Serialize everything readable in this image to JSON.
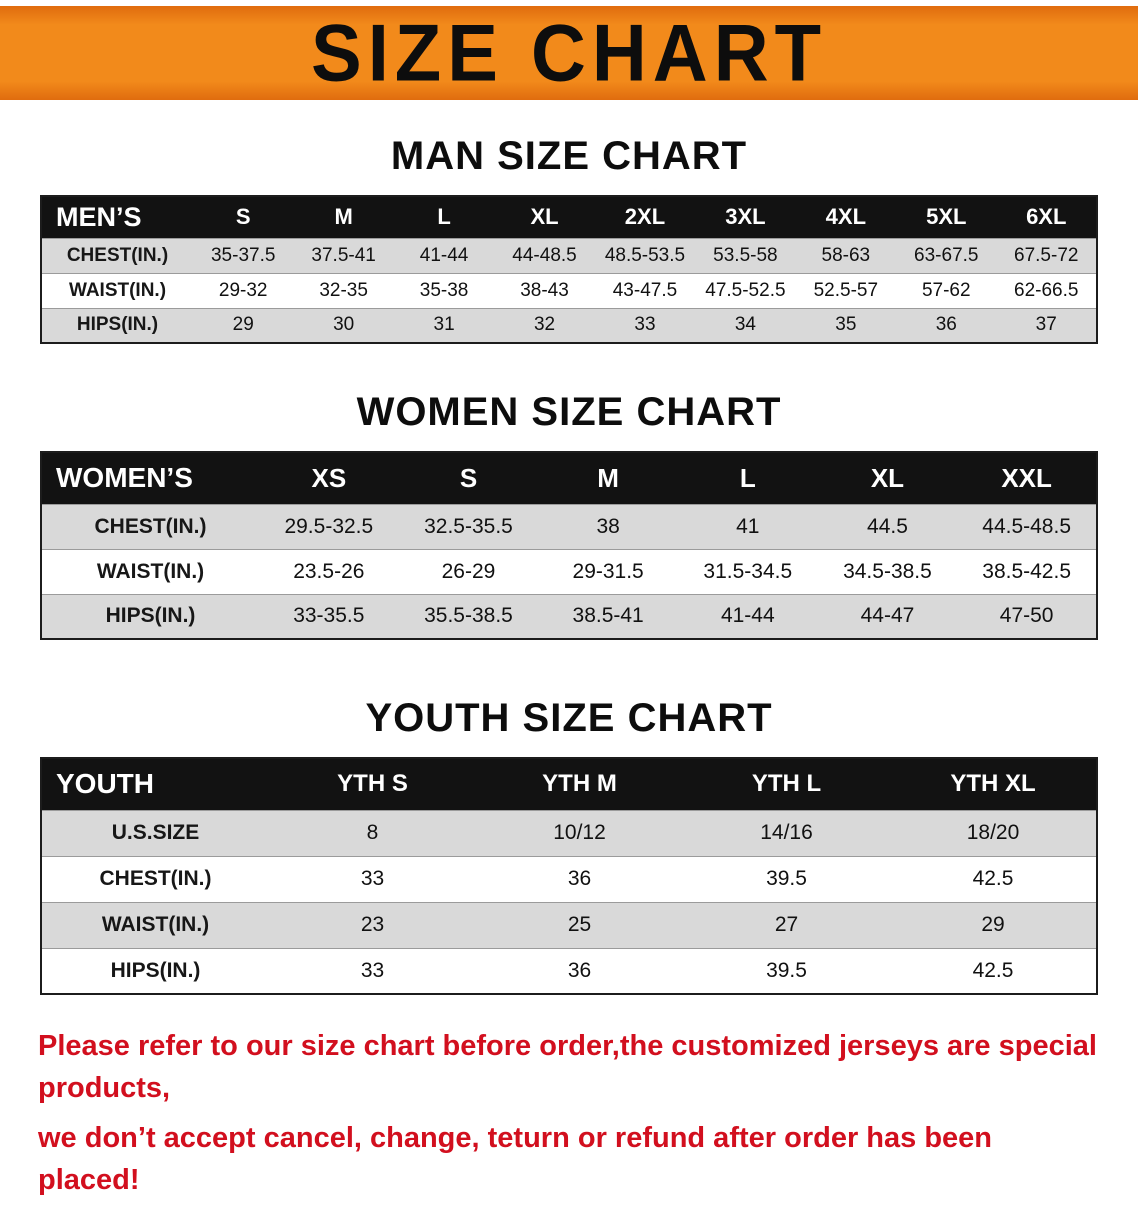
{
  "banner": {
    "title": "SIZE CHART"
  },
  "colors": {
    "banner_bg": "#f28a1b",
    "banner_bg_dark": "#e06c0e",
    "table_header_bg": "#121212",
    "table_header_text": "#ffffff",
    "row_shade": "#d9d9d9",
    "disclaimer_text": "#d20f1e"
  },
  "chart_data": [
    {
      "type": "table",
      "title": "MAN SIZE CHART",
      "columns": [
        "MEN’S",
        "S",
        "M",
        "L",
        "XL",
        "2XL",
        "3XL",
        "4XL",
        "5XL",
        "6XL"
      ],
      "rows": [
        [
          "CHEST(IN.)",
          "35-37.5",
          "37.5-41",
          "41-44",
          "44-48.5",
          "48.5-53.5",
          "53.5-58",
          "58-63",
          "63-67.5",
          "67.5-72"
        ],
        [
          "WAIST(IN.)",
          "29-32",
          "32-35",
          "35-38",
          "38-43",
          "43-47.5",
          "47.5-52.5",
          "52.5-57",
          "57-62",
          "62-66.5"
        ],
        [
          "HIPS(IN.)",
          "29",
          "30",
          "31",
          "32",
          "33",
          "34",
          "35",
          "36",
          "37"
        ]
      ]
    },
    {
      "type": "table",
      "title": "WOMEN SIZE CHART",
      "columns": [
        "WOMEN’S",
        "XS",
        "S",
        "M",
        "L",
        "XL",
        "XXL"
      ],
      "rows": [
        [
          "CHEST(IN.)",
          "29.5-32.5",
          "32.5-35.5",
          "38",
          "41",
          "44.5",
          "44.5-48.5"
        ],
        [
          "WAIST(IN.)",
          "23.5-26",
          "26-29",
          "29-31.5",
          "31.5-34.5",
          "34.5-38.5",
          "38.5-42.5"
        ],
        [
          "HIPS(IN.)",
          "33-35.5",
          "35.5-38.5",
          "38.5-41",
          "41-44",
          "44-47",
          "47-50"
        ]
      ]
    },
    {
      "type": "table",
      "title": "YOUTH SIZE CHART",
      "columns": [
        "YOUTH",
        "YTH S",
        "YTH M",
        "YTH L",
        "YTH XL"
      ],
      "rows": [
        [
          "U.S.SIZE",
          "8",
          "10/12",
          "14/16",
          "18/20"
        ],
        [
          "CHEST(IN.)",
          "33",
          "36",
          "39.5",
          "42.5"
        ],
        [
          "WAIST(IN.)",
          "23",
          "25",
          "27",
          "29"
        ],
        [
          "HIPS(IN.)",
          "33",
          "36",
          "39.5",
          "42.5"
        ]
      ]
    }
  ],
  "disclaimer": {
    "line1": "Please refer to our size chart before order,the customized jerseys are special products,",
    "line2": "we don’t accept cancel, change, teturn or refund after order has been placed!"
  }
}
